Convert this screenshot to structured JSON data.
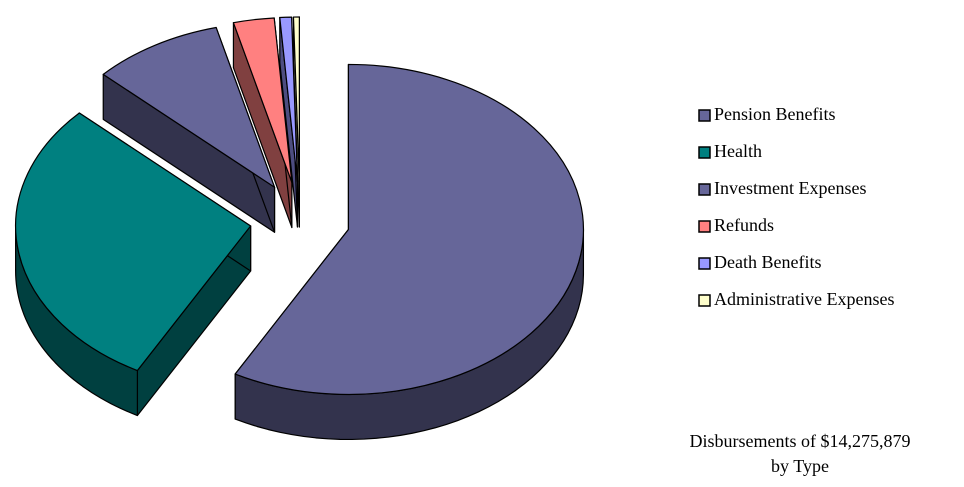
{
  "chart_data": {
    "type": "pie",
    "title": [
      "Disbursements of $14,275,879",
      "by Type"
    ],
    "categories": [
      "Pension Benefits",
      "Health",
      "Investment Expenses",
      "Refunds",
      "Death Benefits",
      "Administrative Expenses"
    ],
    "values": [
      58,
      29,
      9,
      2.8,
      0.8,
      0.4
    ],
    "colors": [
      "#666699",
      "#008080",
      "#666699",
      "#ff8080",
      "#9999ff",
      "#ffffcc"
    ],
    "legend": "right"
  }
}
